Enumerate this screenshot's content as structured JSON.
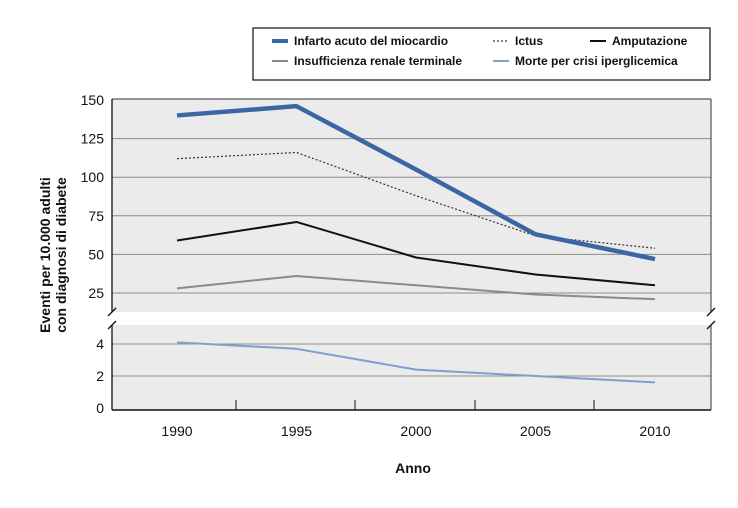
{
  "chart_data": {
    "type": "line",
    "xlabel": "Anno",
    "ylabel": [
      "Eventi per 10.000 adulti",
      "con diagnosi di diabete"
    ],
    "x": [
      "1990",
      "1995",
      "2000",
      "2005",
      "2010"
    ],
    "upper_panel": {
      "ylim": [
        12,
        150
      ],
      "yticks": [
        "150",
        "125",
        "100",
        "75",
        "50",
        "25"
      ],
      "ytick_values": [
        150,
        125,
        100,
        75,
        50,
        25
      ]
    },
    "lower_panel": {
      "ylim": [
        0,
        5
      ],
      "yticks": [
        "4",
        "2",
        "0"
      ],
      "ytick_values": [
        4,
        2,
        0
      ]
    },
    "axis_break": true,
    "grid": true,
    "legend_placement": "top-right",
    "series": [
      {
        "name": "Infarto acuto del miocardio",
        "panel": "upper",
        "color": "#3b66a6",
        "style": "thick",
        "values": [
          140,
          146,
          105,
          63,
          47
        ]
      },
      {
        "name": "Ictus",
        "panel": "upper",
        "color": "#333333",
        "style": "dotted",
        "values": [
          112,
          116,
          88,
          62,
          54
        ]
      },
      {
        "name": "Amputazione",
        "panel": "upper",
        "color": "#111111",
        "style": "solid",
        "values": [
          59,
          71,
          48,
          37,
          30
        ]
      },
      {
        "name": "Insufficienza renale terminale",
        "panel": "upper",
        "color": "#8a8a8a",
        "style": "solid",
        "values": [
          28,
          36,
          30,
          24,
          21
        ]
      },
      {
        "name": "Morte per crisi iperglicemica",
        "panel": "lower",
        "color": "#7f9fd2",
        "style": "solid",
        "values": [
          4.1,
          3.7,
          2.4,
          2.0,
          1.6
        ]
      }
    ]
  }
}
